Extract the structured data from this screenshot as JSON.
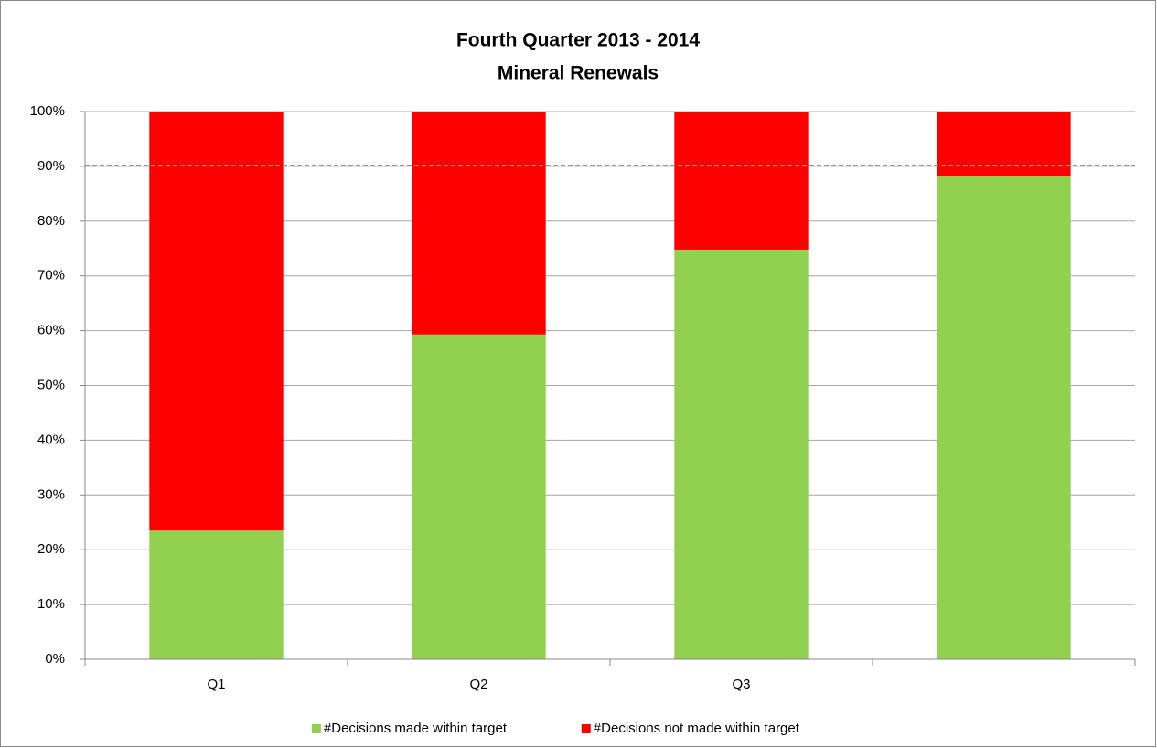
{
  "chart_data": {
    "type": "stacked_bar",
    "title": "Fourth Quarter 2013 - 2014",
    "subtitle": "Mineral Renewals",
    "categories": [
      "Q1",
      "Q2",
      "Q3",
      null
    ],
    "series": [
      {
        "name": "#Decisions made within target",
        "color": "#92d050",
        "values": [
          23.5,
          59.3,
          74.8,
          88.3
        ]
      },
      {
        "name": "#Decisions not made within target",
        "color": "#ff0000",
        "values": [
          76.5,
          40.7,
          25.2,
          11.7
        ]
      }
    ],
    "target_line": 90.2,
    "ylim": [
      0,
      100
    ],
    "yticks": [
      {
        "value": 0,
        "label": "0%"
      },
      {
        "value": 10,
        "label": "10%"
      },
      {
        "value": 20,
        "label": "20%"
      },
      {
        "value": 30,
        "label": "30%"
      },
      {
        "value": 40,
        "label": "40%"
      },
      {
        "value": 50,
        "label": "50%"
      },
      {
        "value": 60,
        "label": "60%"
      },
      {
        "value": 70,
        "label": "70%"
      },
      {
        "value": 80,
        "label": "80%"
      },
      {
        "value": 90,
        "label": "90%"
      },
      {
        "value": 100,
        "label": "100%"
      }
    ],
    "grid": true,
    "legend": "bottom"
  }
}
